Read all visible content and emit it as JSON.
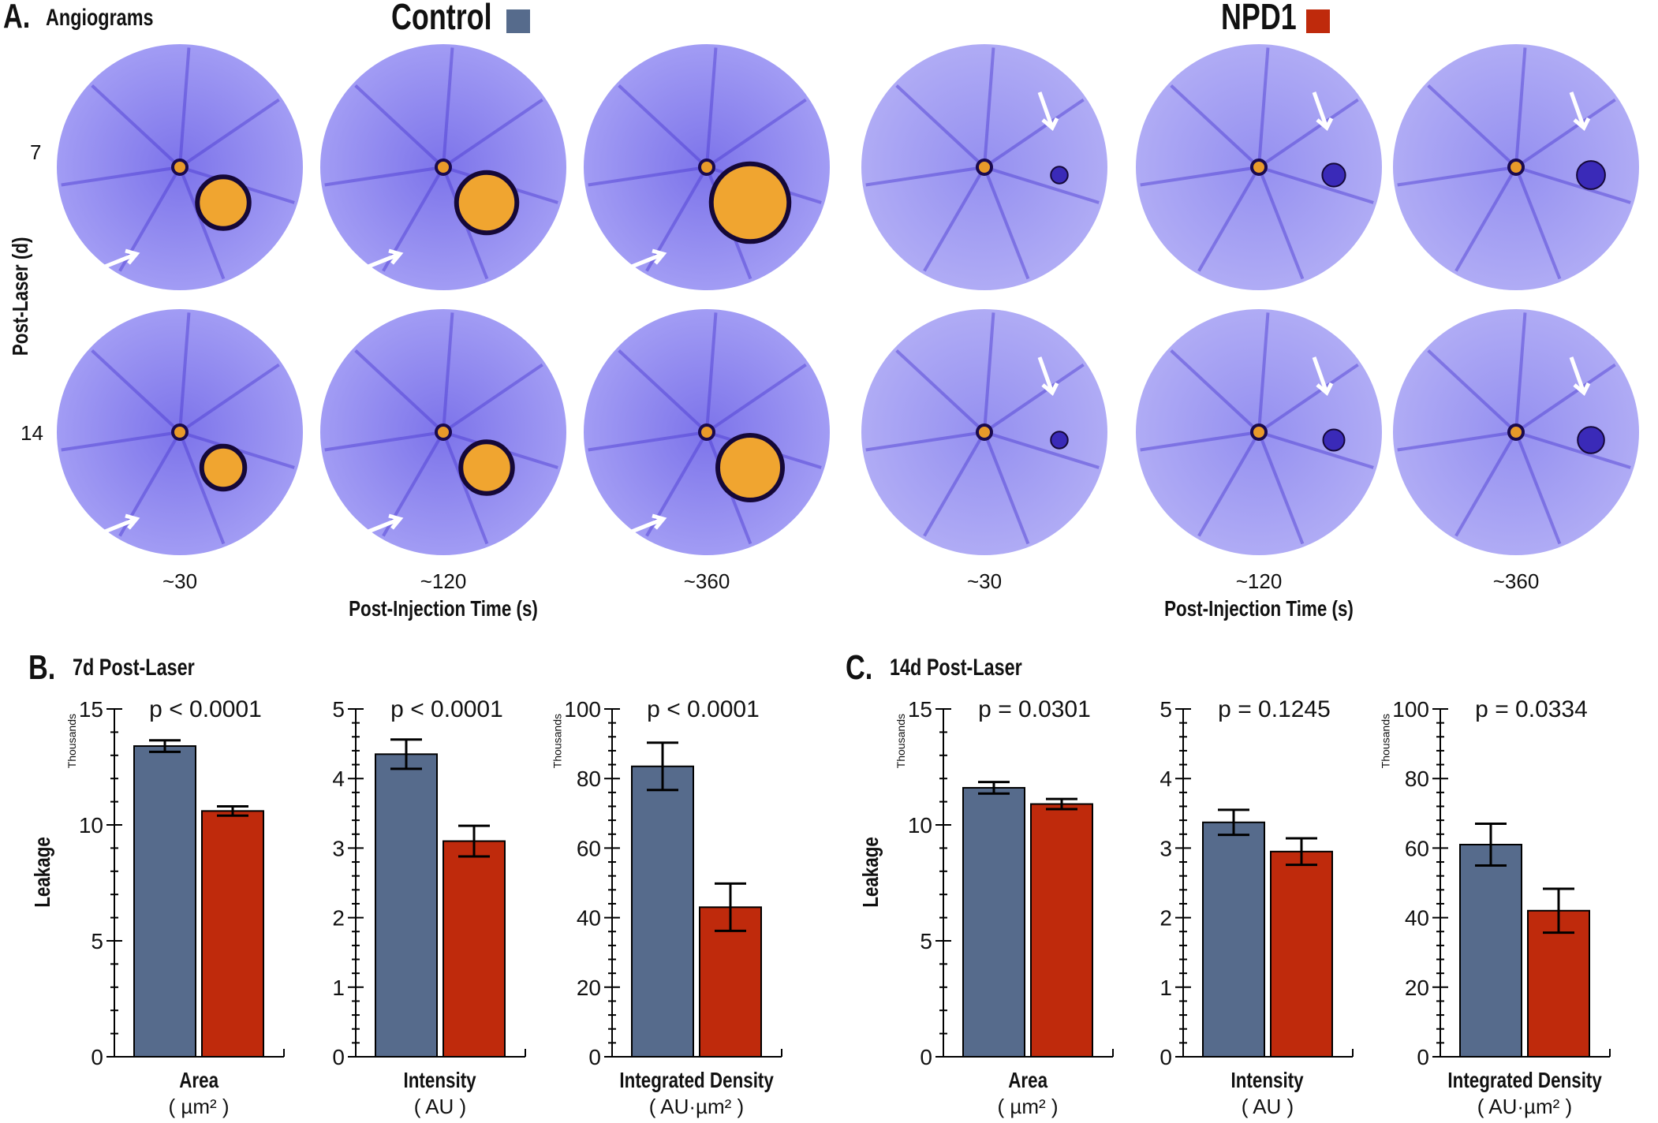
{
  "panelA": {
    "letter": "A.",
    "title": "Angiograms",
    "groups": [
      {
        "name": "Control",
        "color": "#566b8c"
      },
      {
        "name": "NPD1",
        "color": "#bf2a0c"
      }
    ],
    "row_axis_label": "Post-Laser (d)",
    "rows": [
      "7",
      "14"
    ],
    "time_ticks": [
      "~30",
      "~120",
      "~360"
    ],
    "time_axis_label": "Post-Injection Time (s)"
  },
  "panelB": {
    "letter": "B.",
    "title": "7d Post-Laser",
    "ylabel": "Leakage"
  },
  "panelC": {
    "letter": "C.",
    "title": "14d Post-Laser",
    "ylabel": "Leakage"
  },
  "colors": {
    "control": "#566b8c",
    "npd1": "#bf2a0c",
    "angiogram_bg": "#8f88f0",
    "leak": "#f0a030"
  },
  "chart_data": [
    {
      "type": "bar",
      "panel": "B",
      "title": "p < 0.0001",
      "xlabel": "Area",
      "unit": "( µm² )",
      "scale_label": "Thousands",
      "ylim": [
        0,
        15
      ],
      "yticks": [
        "0",
        "5",
        "10",
        "15"
      ],
      "major_step": 5,
      "minor_step": 1,
      "categories": [
        "Control",
        "NPD1"
      ],
      "values": [
        13.4,
        10.6
      ],
      "errors": [
        0.25,
        0.2
      ]
    },
    {
      "type": "bar",
      "panel": "B",
      "title": "p < 0.0001",
      "xlabel": "Intensity",
      "unit": "( AU )",
      "scale_label": "",
      "ylim": [
        0,
        5
      ],
      "yticks": [
        "0",
        "1",
        "2",
        "3",
        "4",
        "5"
      ],
      "major_step": 1,
      "minor_step": 0.2,
      "categories": [
        "Control",
        "NPD1"
      ],
      "values": [
        4.35,
        3.1
      ],
      "errors": [
        0.21,
        0.22
      ]
    },
    {
      "type": "bar",
      "panel": "B",
      "title": "p < 0.0001",
      "xlabel": "Integrated Density",
      "unit": "( AU·µm² )",
      "scale_label": "Thousands",
      "ylim": [
        0,
        100
      ],
      "yticks": [
        "0",
        "20",
        "40",
        "60",
        "80",
        "100"
      ],
      "major_step": 20,
      "minor_step": 4,
      "categories": [
        "Control",
        "NPD1"
      ],
      "values": [
        83.5,
        43
      ],
      "errors": [
        6.8,
        6.8
      ]
    },
    {
      "type": "bar",
      "panel": "C",
      "title": "p = 0.0301",
      "xlabel": "Area",
      "unit": "( µm² )",
      "scale_label": "Thousands",
      "ylim": [
        0,
        15
      ],
      "yticks": [
        "0",
        "5",
        "10",
        "15"
      ],
      "major_step": 5,
      "minor_step": 1,
      "categories": [
        "Control",
        "NPD1"
      ],
      "values": [
        11.6,
        10.9
      ],
      "errors": [
        0.25,
        0.22
      ]
    },
    {
      "type": "bar",
      "panel": "C",
      "title": "p = 0.1245",
      "xlabel": "Intensity",
      "unit": "( AU )",
      "scale_label": "",
      "ylim": [
        0,
        5
      ],
      "yticks": [
        "0",
        "1",
        "2",
        "3",
        "4",
        "5"
      ],
      "major_step": 1,
      "minor_step": 0.2,
      "categories": [
        "Control",
        "NPD1"
      ],
      "values": [
        3.37,
        2.95
      ],
      "errors": [
        0.18,
        0.19
      ]
    },
    {
      "type": "bar",
      "panel": "C",
      "title": "p = 0.0334",
      "xlabel": "Integrated Density",
      "unit": "( AU·µm² )",
      "scale_label": "Thousands",
      "ylim": [
        0,
        100
      ],
      "yticks": [
        "0",
        "20",
        "40",
        "60",
        "80",
        "100"
      ],
      "major_step": 20,
      "minor_step": 4,
      "categories": [
        "Control",
        "NPD1"
      ],
      "values": [
        61,
        42
      ],
      "errors": [
        6,
        6.3
      ]
    }
  ]
}
